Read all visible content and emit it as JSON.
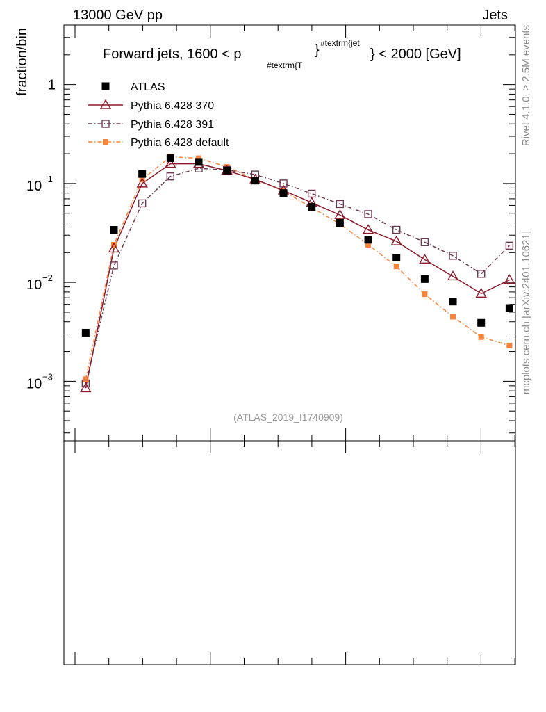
{
  "header": {
    "left": "13000 GeV pp",
    "right": "Jets"
  },
  "side_labels": {
    "rivet": "Rivet 4.1.0, ≥ 2.5M events",
    "mcplots": "mcplots.cern.ch [arXiv:2401.10621]"
  },
  "watermark": "(ATLAS_2019_I1740909)",
  "chart_data": {
    "type": "scatter",
    "title": "Forward jets, 1600 < p",
    "title_sub": "#textrm{T",
    "title_sup": "#textrm{jet",
    "title_tail": "} < 2000 [GeV]",
    "title_close": "}",
    "ylabel": "fraction/bin",
    "xlabel": "",
    "yscale": "log",
    "ylim": [
      0.00025,
      4
    ],
    "xlim": [
      0,
      16
    ],
    "ytick_labels": [
      {
        "value": 1,
        "base": "1",
        "exp": ""
      },
      {
        "value": 0.1,
        "base": "10",
        "exp": "−1"
      },
      {
        "value": 0.01,
        "base": "10",
        "exp": "−2"
      },
      {
        "value": 0.001,
        "base": "10",
        "exp": "−3"
      }
    ],
    "legend_position": "top-left",
    "x": [
      0.5,
      1.5,
      2.5,
      3.5,
      4.5,
      5.5,
      6.5,
      7.5,
      8.5,
      9.5,
      10.5,
      11.5,
      12.5,
      13.5,
      14.5,
      15.5
    ],
    "series": [
      {
        "name": "ATLAS",
        "color": "#000000",
        "marker": "filled-square",
        "line": "none",
        "values": [
          0.0031,
          0.034,
          0.125,
          0.18,
          0.165,
          0.135,
          0.107,
          0.08,
          0.058,
          0.04,
          0.027,
          0.0178,
          0.0108,
          0.0064,
          0.0039,
          0.0055
        ]
      },
      {
        "name": "Pythia 6.428 370",
        "color": "#8b1a2b",
        "marker": "open-triangle",
        "line": "solid",
        "values": [
          0.00085,
          0.022,
          0.1,
          0.158,
          0.158,
          0.135,
          0.11,
          0.085,
          0.064,
          0.048,
          0.034,
          0.026,
          0.017,
          0.0115,
          0.0077,
          0.0106
        ]
      },
      {
        "name": "Pythia 6.428 391",
        "color": "#6b3a52",
        "marker": "open-square",
        "line": "dash-dot",
        "values": [
          0.00095,
          0.0148,
          0.063,
          0.118,
          0.142,
          0.137,
          0.123,
          0.1,
          0.079,
          0.062,
          0.049,
          0.034,
          0.0255,
          0.0186,
          0.0122,
          0.0235
        ]
      },
      {
        "name": "Pythia 6.428 default",
        "color": "#f5843c",
        "marker": "small-filled-square",
        "line": "dash-dot",
        "values": [
          0.00105,
          0.024,
          0.11,
          0.186,
          0.18,
          0.147,
          0.11,
          0.084,
          0.057,
          0.039,
          0.024,
          0.0145,
          0.0076,
          0.0045,
          0.0028,
          0.0023
        ]
      }
    ]
  }
}
